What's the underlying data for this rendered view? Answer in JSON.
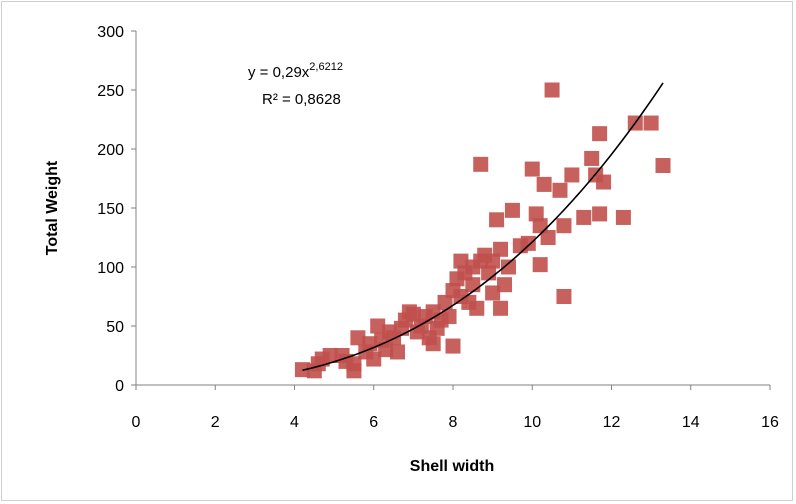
{
  "chart_data": {
    "type": "scatter",
    "title": "",
    "xlabel": "Shell width",
    "ylabel": "Total Weight",
    "xlim": [
      0,
      16
    ],
    "ylim": [
      0,
      300
    ],
    "x_ticks": [
      0,
      2,
      4,
      6,
      8,
      10,
      12,
      14,
      16
    ],
    "y_ticks": [
      0,
      50,
      100,
      150,
      200,
      250,
      300
    ],
    "grid": false,
    "legend": "none",
    "marker_color": "#c0504d",
    "trendline_color": "#000000",
    "trendline": {
      "type": "power",
      "a": 0.29,
      "b": 2.6212,
      "x_range": [
        4.2,
        13.3
      ]
    },
    "equation": {
      "prefix": "y = 0,29x",
      "exponent": "2,6212",
      "r2": "R² = 0,8628"
    },
    "points": [
      [
        4.2,
        13
      ],
      [
        4.5,
        12
      ],
      [
        4.6,
        18
      ],
      [
        4.7,
        22
      ],
      [
        4.9,
        25
      ],
      [
        5.2,
        25
      ],
      [
        5.3,
        20
      ],
      [
        5.5,
        12
      ],
      [
        5.5,
        18
      ],
      [
        5.6,
        40
      ],
      [
        5.8,
        28
      ],
      [
        5.9,
        35
      ],
      [
        6.0,
        22
      ],
      [
        6.1,
        50
      ],
      [
        6.2,
        38
      ],
      [
        6.3,
        30
      ],
      [
        6.4,
        45
      ],
      [
        6.5,
        40
      ],
      [
        6.6,
        28
      ],
      [
        6.7,
        48
      ],
      [
        6.8,
        55
      ],
      [
        6.9,
        62
      ],
      [
        7.0,
        60
      ],
      [
        7.1,
        45
      ],
      [
        7.2,
        50
      ],
      [
        7.3,
        58
      ],
      [
        7.4,
        40
      ],
      [
        7.5,
        35
      ],
      [
        7.5,
        62
      ],
      [
        7.6,
        48
      ],
      [
        7.7,
        55
      ],
      [
        7.8,
        70
      ],
      [
        7.9,
        58
      ],
      [
        8.0,
        33
      ],
      [
        8.0,
        80
      ],
      [
        8.1,
        90
      ],
      [
        8.2,
        75
      ],
      [
        8.2,
        105
      ],
      [
        8.3,
        95
      ],
      [
        8.4,
        70
      ],
      [
        8.5,
        100
      ],
      [
        8.5,
        85
      ],
      [
        8.6,
        65
      ],
      [
        8.7,
        105
      ],
      [
        8.7,
        187
      ],
      [
        8.8,
        110
      ],
      [
        8.9,
        95
      ],
      [
        9.0,
        78
      ],
      [
        9.0,
        105
      ],
      [
        9.1,
        140
      ],
      [
        9.2,
        115
      ],
      [
        9.2,
        65
      ],
      [
        9.3,
        85
      ],
      [
        9.4,
        100
      ],
      [
        9.5,
        148
      ],
      [
        9.7,
        118
      ],
      [
        9.9,
        120
      ],
      [
        10.0,
        183
      ],
      [
        10.1,
        145
      ],
      [
        10.2,
        102
      ],
      [
        10.2,
        135
      ],
      [
        10.3,
        170
      ],
      [
        10.4,
        125
      ],
      [
        10.5,
        250
      ],
      [
        10.7,
        165
      ],
      [
        10.8,
        75
      ],
      [
        10.8,
        135
      ],
      [
        11.0,
        178
      ],
      [
        11.3,
        142
      ],
      [
        11.5,
        192
      ],
      [
        11.6,
        178
      ],
      [
        11.7,
        145
      ],
      [
        11.7,
        213
      ],
      [
        11.8,
        172
      ],
      [
        12.3,
        142
      ],
      [
        12.6,
        222
      ],
      [
        13.0,
        222
      ],
      [
        13.3,
        186
      ]
    ]
  }
}
